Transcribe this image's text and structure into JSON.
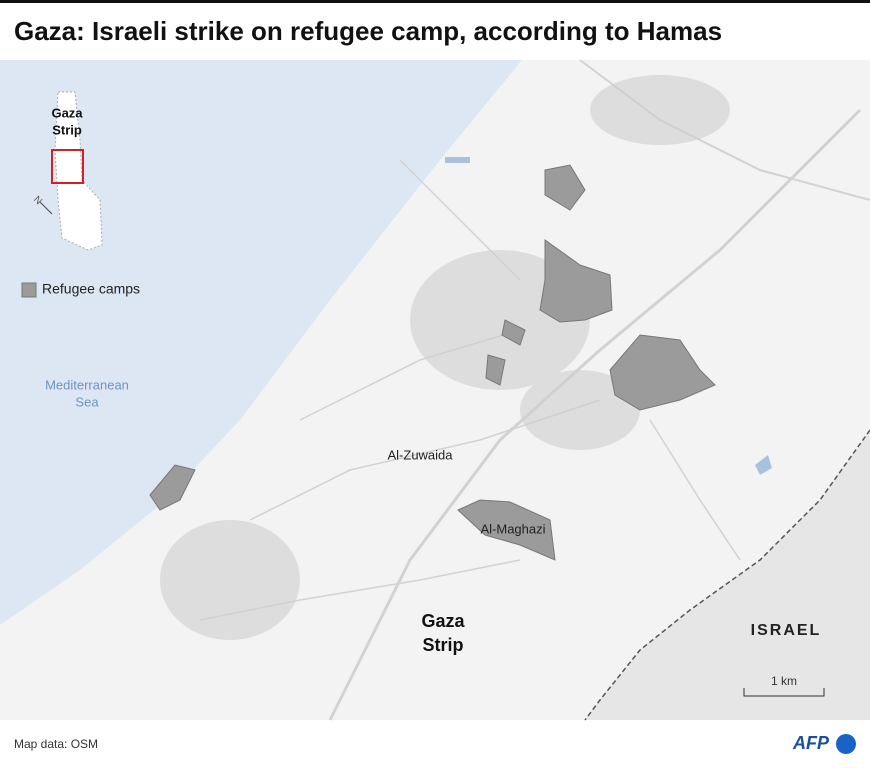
{
  "header": {
    "title": "Gaza: Israeli strike on refugee camp, according to Hamas"
  },
  "inset": {
    "label_lines": [
      "Gaza",
      "Strip"
    ],
    "north": "N"
  },
  "legend": {
    "label": "Refugee camps"
  },
  "sea": {
    "label_lines": [
      "Mediterranean",
      "Sea"
    ]
  },
  "places": {
    "zuwaida": "Al-Zuwaida",
    "maghazi": "Al-Maghazi",
    "strip_lines": [
      "Gaza",
      "Strip"
    ],
    "israel": "ISRAEL"
  },
  "scale": {
    "label": "1 km"
  },
  "footer": {
    "source": "Map data: OSM",
    "logo": "AFP"
  }
}
